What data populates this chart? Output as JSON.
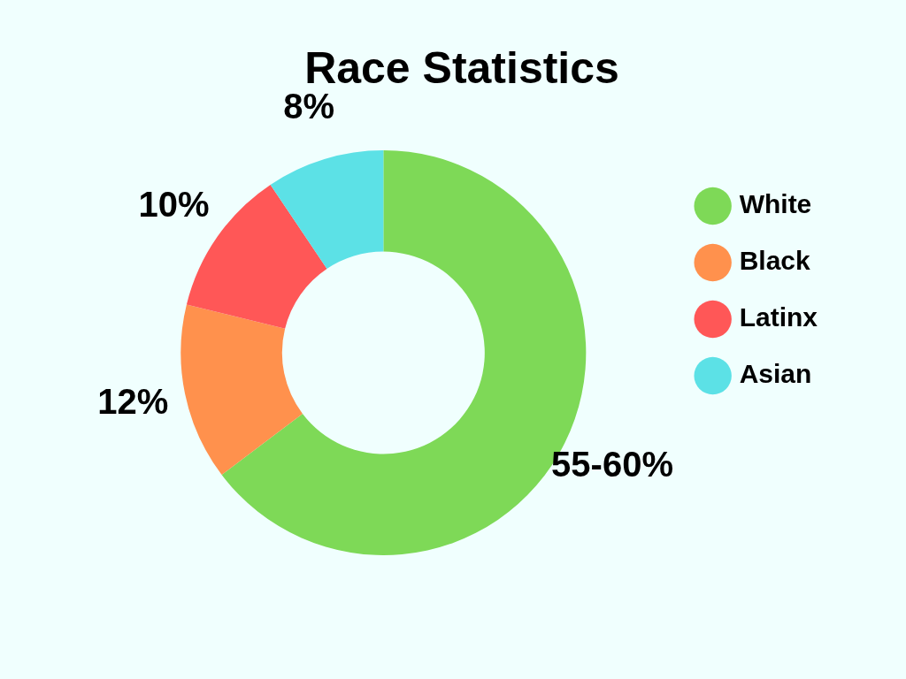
{
  "chart_data": {
    "type": "donut",
    "title": "Race Statistics",
    "categories": [
      "White",
      "Black",
      "Latinx",
      "Asian"
    ],
    "values": [
      55,
      12,
      10,
      8
    ],
    "value_labels": [
      "55-60%",
      "12%",
      "10%",
      "8%"
    ],
    "colors": [
      "#7ed957",
      "#ff914d",
      "#ff5757",
      "#5ce1e6"
    ],
    "legend": "right"
  }
}
